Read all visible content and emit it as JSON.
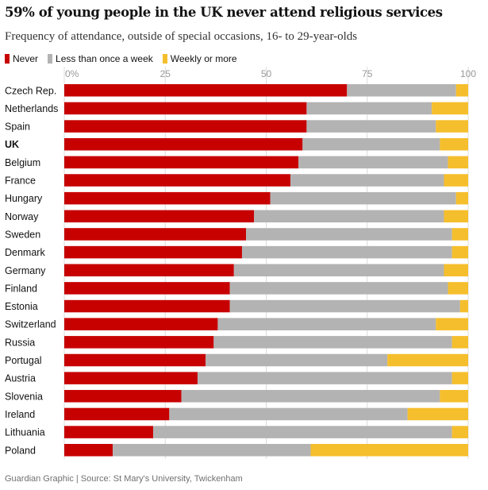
{
  "colors": {
    "never": "#c70000",
    "less_than_weekly": "#b3b3b3",
    "weekly": "#f5be2c",
    "tick_text": "#999999",
    "grid": "#dcdcdc",
    "label_text": "#121212"
  },
  "footer": {
    "text": "Guardian Graphic | Source: St Mary's University, Twickenham"
  },
  "chart_data": {
    "type": "bar",
    "orientation": "horizontal",
    "stacked": true,
    "title": "59% of young people in the UK never attend religious services",
    "subtitle": "Frequency of attendance, outside of special occasions, 16- to 29-year-olds",
    "xlabel": "",
    "ylabel": "",
    "xlim": [
      0,
      100
    ],
    "ticks": [
      0,
      25,
      50,
      75,
      100
    ],
    "tick_labels": [
      "0%",
      "25",
      "50",
      "75",
      "100"
    ],
    "grid": true,
    "legend_position": "top-left",
    "highlighted_category": "UK",
    "categories": [
      "Czech Rep.",
      "Netherlands",
      "Spain",
      "UK",
      "Belgium",
      "France",
      "Hungary",
      "Norway",
      "Sweden",
      "Denmark",
      "Germany",
      "Finland",
      "Estonia",
      "Switzerland",
      "Russia",
      "Portugal",
      "Austria",
      "Slovenia",
      "Ireland",
      "Lithuania",
      "Poland"
    ],
    "series": [
      {
        "name": "Never",
        "color_key": "never",
        "values": [
          70,
          60,
          60,
          59,
          58,
          56,
          51,
          47,
          45,
          44,
          42,
          41,
          41,
          38,
          37,
          35,
          33,
          29,
          26,
          22,
          12
        ]
      },
      {
        "name": "Less than once a week",
        "color_key": "less_than_weekly",
        "values": [
          27,
          31,
          32,
          34,
          37,
          38,
          46,
          47,
          51,
          52,
          52,
          54,
          57,
          54,
          59,
          45,
          63,
          64,
          59,
          74,
          49
        ]
      },
      {
        "name": "Weekly or more",
        "color_key": "weekly",
        "values": [
          3,
          9,
          8,
          7,
          5,
          6,
          3,
          6,
          4,
          4,
          6,
          5,
          2,
          8,
          4,
          20,
          4,
          7,
          15,
          4,
          39
        ]
      }
    ]
  }
}
